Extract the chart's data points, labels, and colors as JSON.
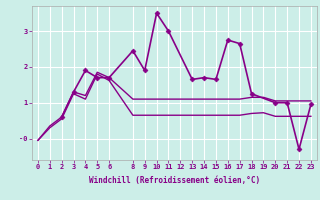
{
  "xlabel": "Windchill (Refroidissement éolien,°C)",
  "background_color": "#cceee8",
  "grid_color": "#ffffff",
  "line_color": "#880088",
  "x_ticks": [
    0,
    1,
    2,
    3,
    4,
    5,
    6,
    8,
    9,
    10,
    11,
    12,
    13,
    14,
    15,
    16,
    17,
    18,
    19,
    20,
    21,
    22,
    23
  ],
  "ylim": [
    -0.6,
    3.7
  ],
  "xlim": [
    -0.5,
    23.5
  ],
  "yticks": [
    0,
    1,
    2,
    3
  ],
  "ytick_labels": [
    "-0",
    "1",
    "2",
    "3"
  ],
  "series": [
    {
      "x": [
        0,
        1,
        2,
        3,
        4,
        5,
        6,
        8,
        9,
        10,
        11,
        12,
        13,
        14,
        15,
        16,
        17,
        18,
        19,
        20,
        21,
        22,
        23
      ],
      "y": [
        -0.05,
        0.35,
        0.6,
        1.3,
        1.2,
        1.85,
        1.7,
        1.1,
        1.1,
        1.1,
        1.1,
        1.1,
        1.1,
        1.1,
        1.1,
        1.1,
        1.1,
        1.15,
        1.15,
        1.05,
        1.05,
        1.05,
        1.05
      ],
      "marker": null,
      "lw": 1.0
    },
    {
      "x": [
        0,
        1,
        2,
        3,
        4,
        5,
        6,
        8,
        9,
        10,
        11,
        12,
        13,
        14,
        15,
        16,
        17,
        18,
        19,
        20,
        21,
        22,
        23
      ],
      "y": [
        -0.05,
        0.3,
        0.55,
        1.25,
        1.1,
        1.8,
        1.62,
        0.65,
        0.65,
        0.65,
        0.65,
        0.65,
        0.65,
        0.65,
        0.65,
        0.65,
        0.65,
        0.7,
        0.72,
        0.62,
        0.62,
        0.62,
        0.62
      ],
      "marker": null,
      "lw": 1.0
    },
    {
      "x": [
        2,
        3,
        4,
        5,
        6,
        8,
        9,
        10,
        11,
        13,
        14,
        15,
        16,
        17,
        18,
        20,
        21,
        22,
        23
      ],
      "y": [
        0.6,
        1.3,
        1.9,
        1.7,
        1.7,
        2.45,
        1.9,
        3.5,
        3.0,
        1.65,
        1.7,
        1.65,
        2.75,
        2.65,
        1.25,
        1.0,
        1.0,
        -0.3,
        0.95
      ],
      "marker": "D",
      "markersize": 2.5,
      "lw": 1.2
    }
  ]
}
